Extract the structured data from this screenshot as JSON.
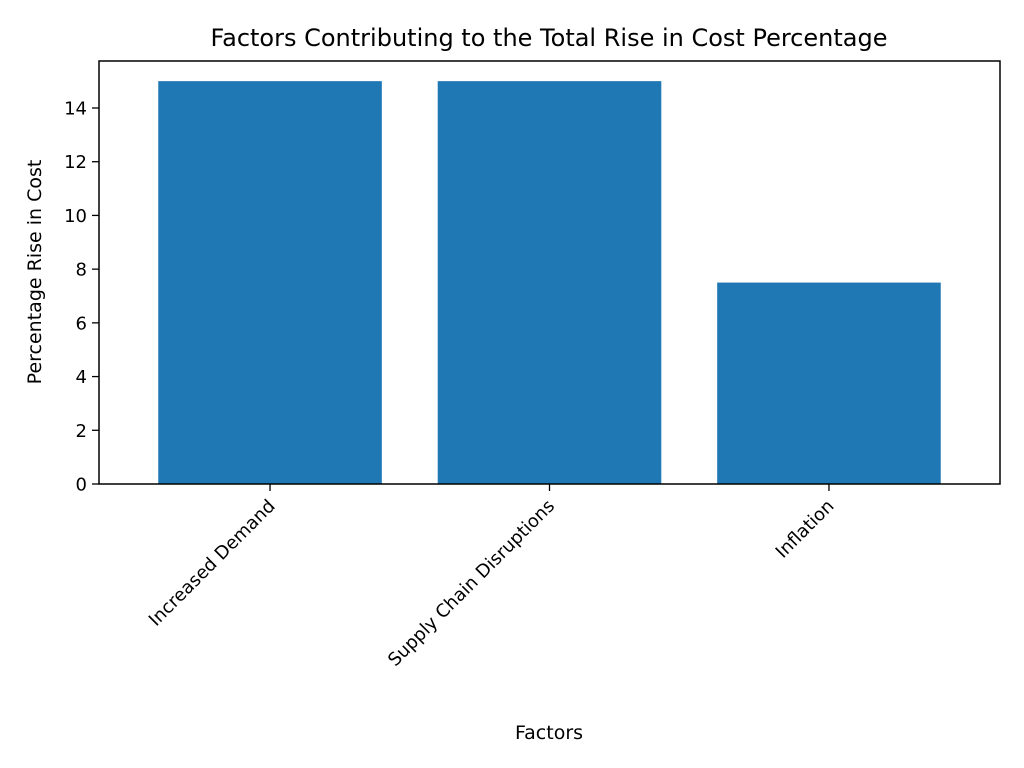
{
  "chart_data": {
    "type": "bar",
    "title": "Factors Contributing to the Total Rise in Cost Percentage",
    "xlabel": "Factors",
    "ylabel": "Percentage Rise in Cost",
    "categories": [
      "Increased Demand",
      "Supply Chain Disruptions",
      "Inflation"
    ],
    "values": [
      15,
      15,
      7.5
    ],
    "ylim": [
      0,
      15.75
    ],
    "yticks": [
      0,
      2,
      4,
      6,
      8,
      10,
      12,
      14
    ],
    "ytick_labels": [
      "0",
      "2",
      "4",
      "6",
      "8",
      "10",
      "12",
      "14"
    ],
    "bar_color": "#1f77b4",
    "grid": false,
    "legend": "none"
  }
}
